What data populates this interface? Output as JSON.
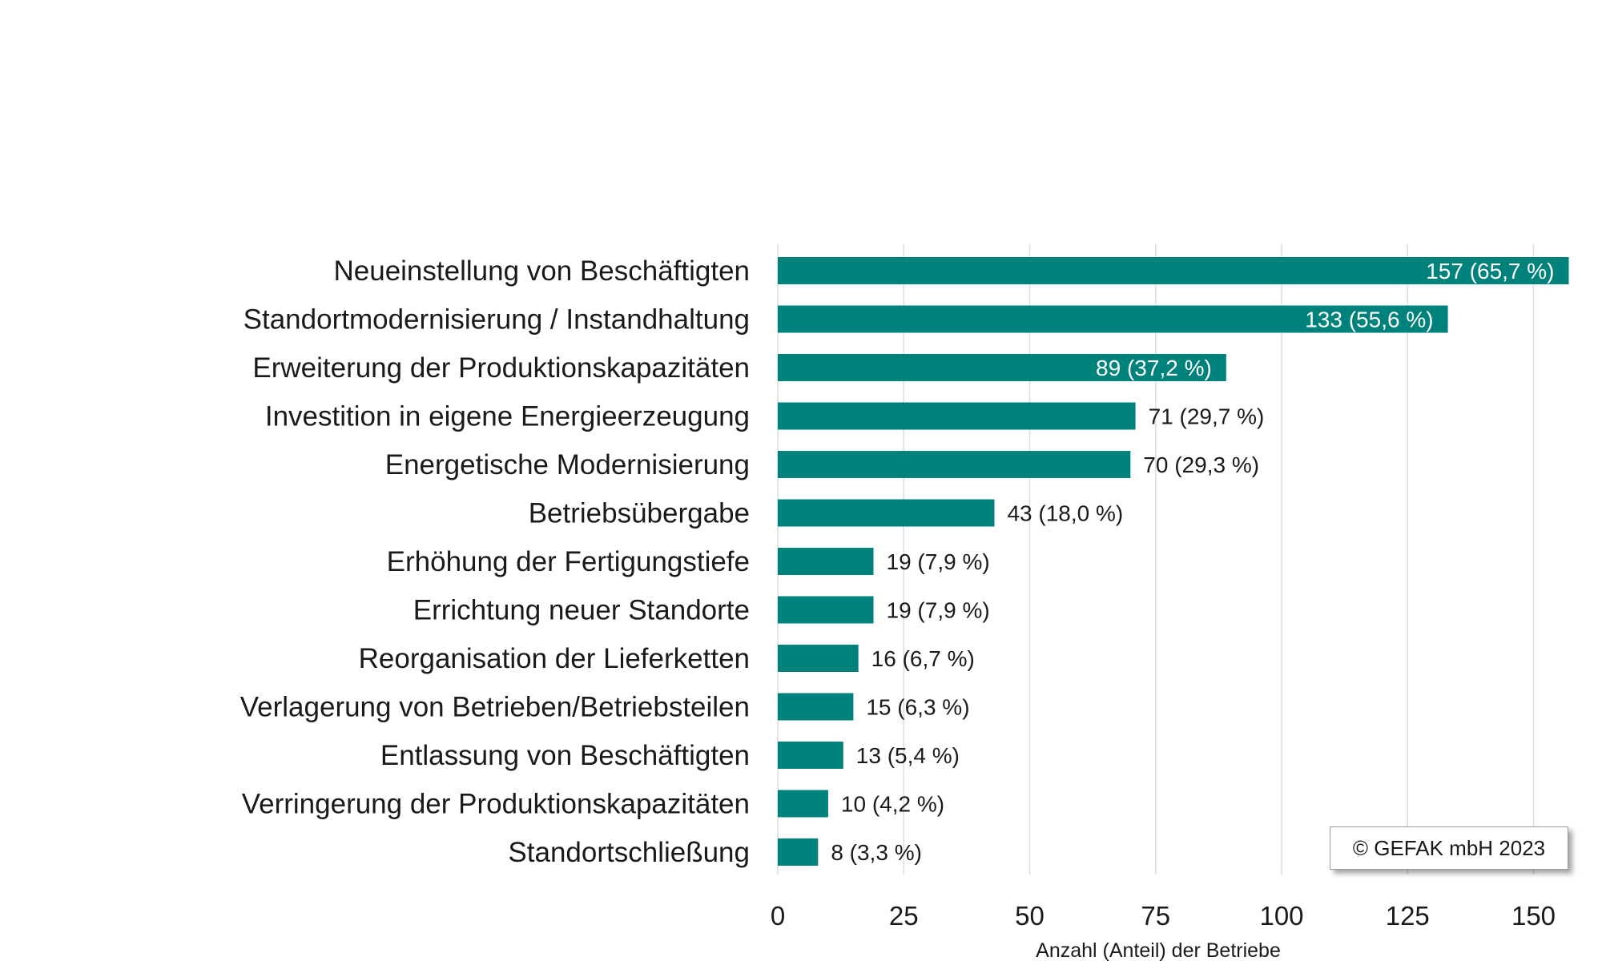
{
  "chart_data": {
    "type": "bar",
    "orientation": "horizontal",
    "categories": [
      "Neueinstellung von Beschäftigten",
      "Standortmodernisierung / Instandhaltung",
      "Erweiterung der Produktionskapazitäten",
      "Investition in eigene Energieerzeugung",
      "Energetische Modernisierung",
      "Betriebsübergabe",
      "Erhöhung der Fertigungstiefe",
      "Errichtung neuer Standorte",
      "Reorganisation der Lieferketten",
      "Verlagerung von Betrieben/Betriebsteilen",
      "Entlassung von Beschäftigten",
      "Verringerung der Produktionskapazitäten",
      "Standortschließung"
    ],
    "values": [
      157,
      133,
      89,
      71,
      70,
      43,
      19,
      19,
      16,
      15,
      13,
      10,
      8
    ],
    "data_labels": [
      "157 (65,7 %)",
      "133 (55,6 %)",
      "89 (37,2 %)",
      "71 (29,7 %)",
      "70 (29,3 %)",
      "43 (18,0 %)",
      "19 (7,9 %)",
      "19 (7,9 %)",
      "16 (6,7 %)",
      "15 (6,3 %)",
      "13 (5,4 %)",
      "10 (4,2 %)",
      "8 (3,3 %)"
    ],
    "xlabel": "Anzahl (Anteil) der Betriebe",
    "xlim": [
      0,
      157
    ],
    "xticks": [
      "0",
      "25",
      "50",
      "75",
      "100",
      "125",
      "150"
    ],
    "grid": "vertical",
    "bar_color": "#00827c"
  },
  "copyright": "© GEFAK mbH 2023"
}
